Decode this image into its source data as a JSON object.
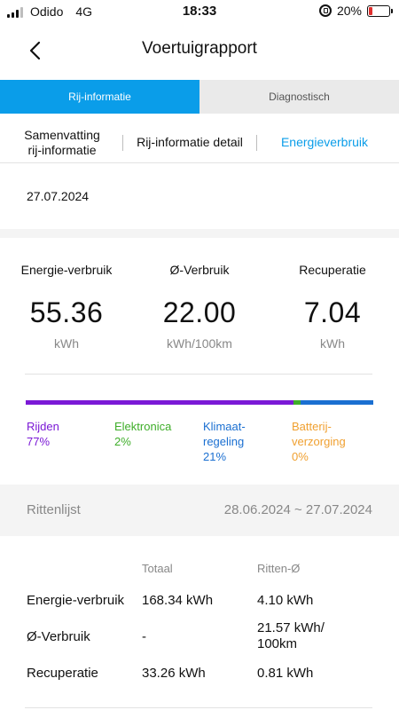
{
  "status_bar": {
    "carrier": "Odido",
    "network": "4G",
    "time": "18:33",
    "battery": "20%",
    "battery_level": 0.2,
    "battery_color": "#e0302e"
  },
  "header": {
    "title": "Voertuigrapport",
    "back_icon": "chevron-left-icon"
  },
  "tabs": [
    {
      "label": "Rij-informatie",
      "active": true
    },
    {
      "label": "Diagnostisch",
      "active": false
    }
  ],
  "subtabs": [
    {
      "label_line1": "Samenvatting",
      "label_line2": "rij-informatie"
    },
    {
      "label": "Rij-informatie detail"
    },
    {
      "label": "Energieverbruik",
      "active": true
    }
  ],
  "date": "27.07.2024",
  "stats": [
    {
      "label": "Energie-verbruik",
      "value": "55.36",
      "unit": "kWh"
    },
    {
      "label": "Ø-Verbruik",
      "value": "22.00",
      "unit": "kWh/100km"
    },
    {
      "label": "Recuperatie",
      "value": "7.04",
      "unit": "kWh"
    }
  ],
  "distribution": [
    {
      "line1": "Rijden",
      "line2": "77%",
      "percent": 77,
      "color": "#7b19d6"
    },
    {
      "line1": "Elektronica",
      "line2": "2%",
      "percent": 2,
      "color": "#3fae2a"
    },
    {
      "line1": "Klimaat-",
      "line2": "regeling",
      "line3": "21%",
      "percent": 21,
      "color": "#1a6fd1"
    },
    {
      "line1": "Batterij-",
      "line2": "verzorging",
      "line3": "0%",
      "percent": 0,
      "color": "#f0a030"
    }
  ],
  "trip_list": {
    "title": "Rittenlijst",
    "range": "28.06.2024 ~ 27.07.2024"
  },
  "summary_table": {
    "headers": [
      "Totaal",
      "Ritten-Ø"
    ],
    "rows": [
      {
        "label": "Energie-verbruik",
        "total": "168.34 kWh",
        "avg": "4.10 kWh"
      },
      {
        "label": "Ø-Verbruik",
        "total": "-",
        "avg_line1": "21.57 kWh/",
        "avg_line2": "100km"
      },
      {
        "label": "Recuperatie",
        "total": "33.26 kWh",
        "avg": "0.81 kWh"
      }
    ]
  },
  "colors": {
    "accent": "#0a9de9"
  }
}
